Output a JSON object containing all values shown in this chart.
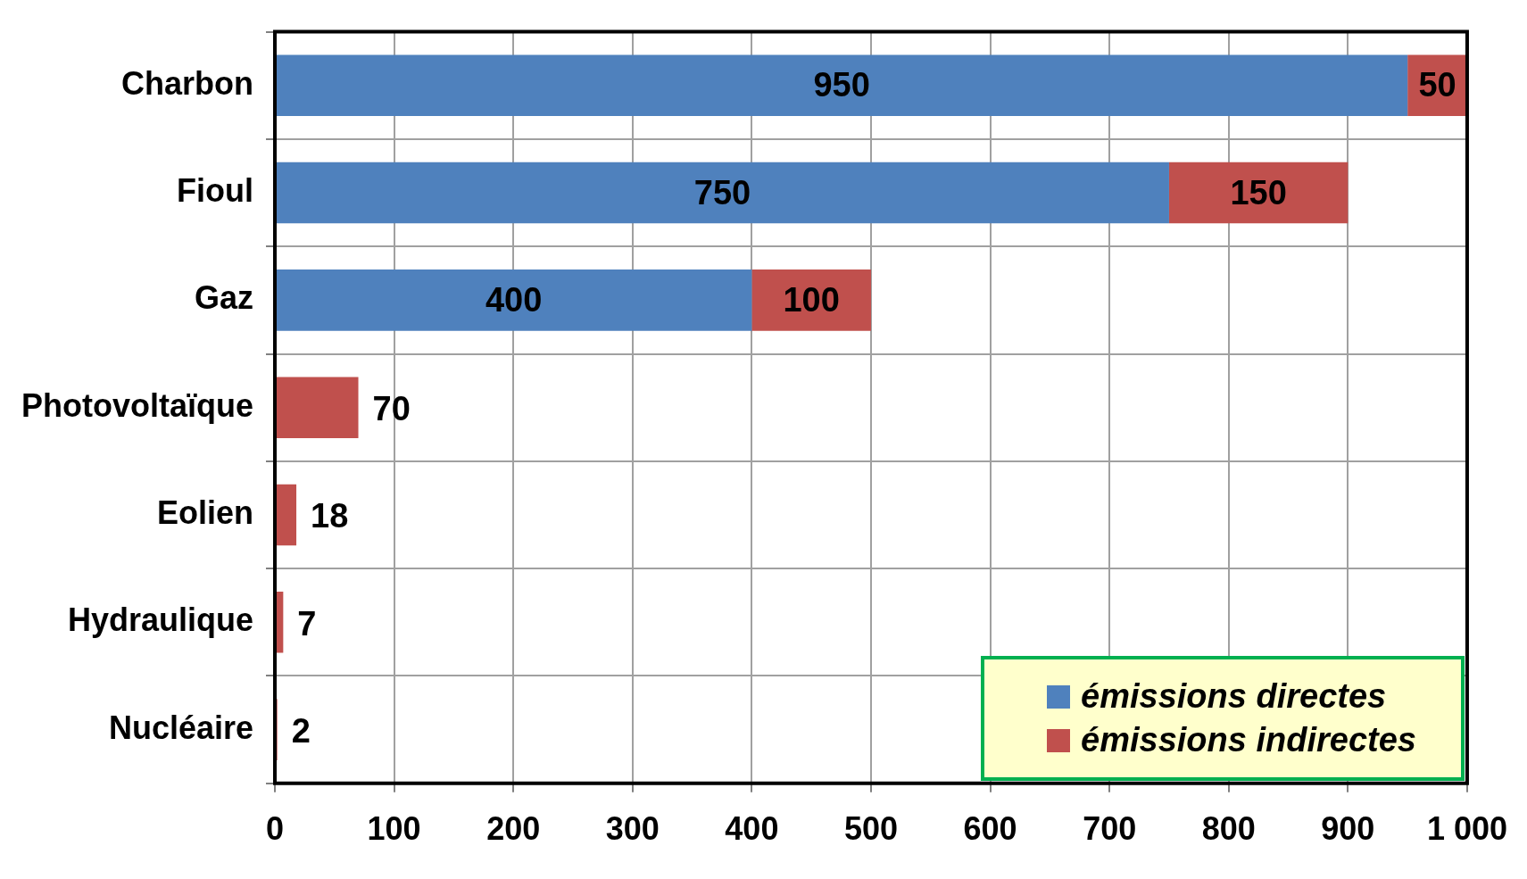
{
  "chart_data": {
    "type": "bar",
    "orientation": "horizontal",
    "stacked": true,
    "categories": [
      "Charbon",
      "Fioul",
      "Gaz",
      "Photovoltaïque",
      "Eolien",
      "Hydraulique",
      "Nucléaire"
    ],
    "series": [
      {
        "name": "émissions directes",
        "color": "#4f81bd",
        "values": [
          950,
          750,
          400,
          null,
          null,
          null,
          null
        ]
      },
      {
        "name": "émissions indirectes",
        "color": "#c0504d",
        "values": [
          50,
          150,
          100,
          70,
          18,
          7,
          2
        ]
      }
    ],
    "xlim": [
      0,
      1000
    ],
    "xticks": [
      0,
      100,
      200,
      300,
      400,
      500,
      600,
      700,
      800,
      900,
      {
        "value": 1000,
        "label": "1 000"
      }
    ],
    "grid": true,
    "legend": "bottom right",
    "data_labels": true
  }
}
